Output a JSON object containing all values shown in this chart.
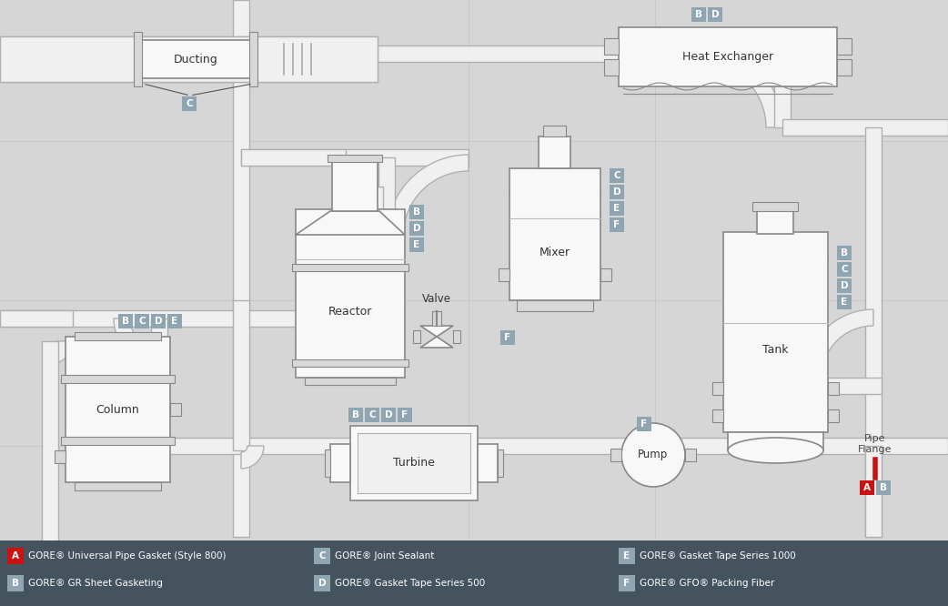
{
  "bg_color": "#d6d6d6",
  "pipe_color": "#f0f0f0",
  "pipe_edge_color": "#b0b0b0",
  "pipe_lw": 1.0,
  "pipe_thick": 18,
  "eq_fill": "#f8f8f8",
  "eq_ec": "#888888",
  "eq_lw": 1.2,
  "flange_fill": "#d8d8d8",
  "flange_ec": "#888888",
  "label_fill": "#8fa5b2",
  "label_text": "#ffffff",
  "red_color": "#cc1111",
  "legend_bg": "#45535f",
  "legend_text": "#ffffff",
  "grid_color": "#c8c8c8",
  "legend_items": [
    {
      "key": "A",
      "text": "GORE® Universal Pipe Gasket (Style 800)",
      "color": "#cc1111"
    },
    {
      "key": "B",
      "text": "GORE® GR Sheet Gasketing",
      "color": "#8fa5b2"
    },
    {
      "key": "C",
      "text": "GORE® Joint Sealant",
      "color": "#8fa5b2"
    },
    {
      "key": "D",
      "text": "GORE® Gasket Tape Series 500",
      "color": "#8fa5b2"
    },
    {
      "key": "E",
      "text": "GORE® Gasket Tape Series 1000",
      "color": "#8fa5b2"
    },
    {
      "key": "F",
      "text": "GORE® GFO® Packing Fiber",
      "color": "#8fa5b2"
    }
  ]
}
